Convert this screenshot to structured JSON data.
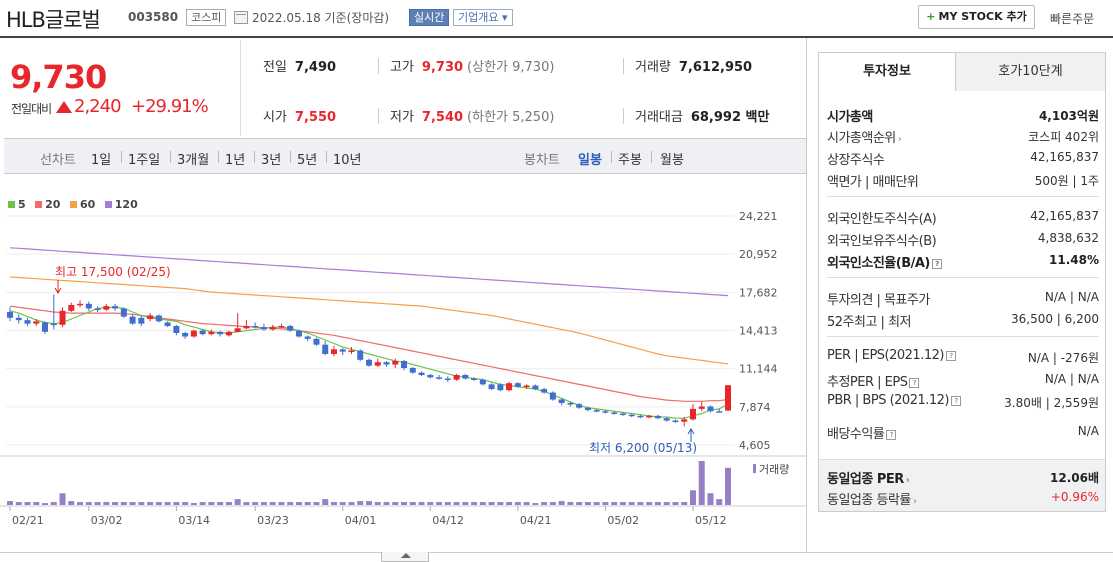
{
  "header": {
    "company_name": "HLB글로벌",
    "code": "003580",
    "market": "코스피",
    "date_text": "2022.05.18 기준(장마감)",
    "realtime": "실시간",
    "overview": "기업개요 ▾",
    "mystock_label": "MY STOCK 추가",
    "quick_order": "빠른주문"
  },
  "price": {
    "current": "9,730",
    "change_label": "전일대비",
    "change": "2,240",
    "change_pct": "+29.91%"
  },
  "stats": {
    "prev_close_label": "전일",
    "prev_close": "7,490",
    "open_label": "시가",
    "open": "7,550",
    "high_label": "고가",
    "high": "9,730",
    "upper_limit": "(상한가 9,730)",
    "low_label": "저가",
    "low": "7,540",
    "lower_limit": "(하한가 5,250)",
    "volume_label": "거래량",
    "volume": "7,612,950",
    "amount_label": "거래대금",
    "amount": "68,992 백만"
  },
  "period_bar": {
    "line_chart": "선차트",
    "periods": [
      "1일",
      "1주일",
      "3개월",
      "1년",
      "3년",
      "5년",
      "10년"
    ],
    "candle_chart": "봉차트",
    "candle_periods": [
      "일봉",
      "주봉",
      "월봉"
    ],
    "active_candle": "일봉"
  },
  "legend": [
    "5",
    "20",
    "60",
    "120"
  ],
  "colors": {
    "up": "#e8262b",
    "down": "#3f6fd1",
    "ma5": "#6cc24a",
    "ma20": "#f06b6b",
    "ma60": "#f5a04a",
    "ma120": "#a97bd8",
    "volume": "#9580c8"
  },
  "chart_data": {
    "type": "candlestick",
    "y_ticks": [
      "24,221",
      "20,952",
      "17,682",
      "14,413",
      "11,144",
      "7,874",
      "4,605"
    ],
    "ylim": [
      4605,
      24221
    ],
    "x_ticks": [
      "02/21",
      "03/02",
      "03/14",
      "03/23",
      "04/01",
      "04/12",
      "04/21",
      "05/02",
      "05/12"
    ],
    "annotation_high": "최고 17,500 (02/25)",
    "annotation_low": "최저 6,200 (05/13)",
    "volume_label": "거래량",
    "candles": [
      [
        16000,
        15500,
        16400,
        15200
      ],
      [
        15500,
        15300,
        15800,
        15000
      ],
      [
        15300,
        15000,
        15500,
        14800
      ],
      [
        15000,
        15200,
        15400,
        14800
      ],
      [
        15100,
        14300,
        15200,
        14100
      ],
      [
        15000,
        14900,
        17500,
        14500
      ],
      [
        14900,
        16100,
        16400,
        14700
      ],
      [
        16100,
        16600,
        16800,
        16000
      ],
      [
        16600,
        16700,
        17000,
        16400
      ],
      [
        16700,
        16300,
        16900,
        16100
      ],
      [
        16300,
        16200,
        16500,
        16000
      ],
      [
        16200,
        16500,
        16700,
        16100
      ],
      [
        16500,
        16300,
        16700,
        16100
      ],
      [
        16300,
        15600,
        16400,
        15500
      ],
      [
        15600,
        15000,
        15800,
        14900
      ],
      [
        15500,
        15000,
        15700,
        14800
      ],
      [
        15400,
        15700,
        15900,
        15200
      ],
      [
        15700,
        15200,
        15800,
        15100
      ],
      [
        15100,
        14800,
        15200,
        14700
      ],
      [
        14800,
        14200,
        14900,
        14000
      ],
      [
        14200,
        13900,
        14300,
        13700
      ],
      [
        13900,
        14400,
        14500,
        13800
      ],
      [
        14400,
        14100,
        14500,
        14000
      ],
      [
        14100,
        14300,
        14500,
        14000
      ],
      [
        14300,
        14100,
        14400,
        13900
      ],
      [
        14000,
        14300,
        14400,
        13900
      ],
      [
        14300,
        14600,
        15900,
        14300
      ],
      [
        14600,
        14800,
        15300,
        14500
      ],
      [
        14800,
        14700,
        15100,
        14600
      ],
      [
        14700,
        14500,
        15000,
        14400
      ],
      [
        14500,
        14700,
        14900,
        14400
      ],
      [
        14700,
        14800,
        15000,
        14600
      ],
      [
        14800,
        14400,
        14900,
        14300
      ],
      [
        14400,
        13900,
        14500,
        13800
      ],
      [
        13900,
        13700,
        14000,
        13500
      ],
      [
        13700,
        13200,
        13800,
        13100
      ],
      [
        13200,
        12400,
        13500,
        12300
      ],
      [
        12400,
        12800,
        13100,
        12200
      ],
      [
        12800,
        12600,
        12900,
        12300
      ],
      [
        12600,
        12700,
        13000,
        12400
      ],
      [
        12700,
        11900,
        12800,
        11800
      ],
      [
        11900,
        11400,
        12000,
        11300
      ],
      [
        11400,
        11700,
        12000,
        11300
      ],
      [
        11700,
        11500,
        11800,
        11300
      ],
      [
        11500,
        11800,
        12000,
        11200
      ],
      [
        11800,
        11200,
        11900,
        11000
      ],
      [
        11200,
        10800,
        11300,
        10700
      ],
      [
        10800,
        10600,
        10900,
        10500
      ],
      [
        10600,
        10400,
        10700,
        10300
      ],
      [
        10400,
        10300,
        10600,
        10200
      ],
      [
        10300,
        10200,
        10500,
        10000
      ],
      [
        10200,
        10600,
        10700,
        10100
      ],
      [
        10600,
        10300,
        10700,
        10200
      ],
      [
        10300,
        10200,
        10400,
        10100
      ],
      [
        10200,
        9800,
        10300,
        9700
      ],
      [
        9800,
        9400,
        9900,
        9300
      ],
      [
        9800,
        9300,
        9900,
        9200
      ],
      [
        9300,
        9900,
        10000,
        9200
      ],
      [
        9900,
        9600,
        10000,
        9500
      ],
      [
        9600,
        9700,
        9800,
        9400
      ],
      [
        9700,
        9400,
        9800,
        9300
      ],
      [
        9400,
        9100,
        9500,
        9000
      ],
      [
        9100,
        8500,
        9200,
        8400
      ],
      [
        8500,
        8200,
        8600,
        8000
      ],
      [
        8200,
        8100,
        8300,
        7900
      ],
      [
        8100,
        7800,
        8200,
        7700
      ],
      [
        7800,
        7600,
        7900,
        7500
      ],
      [
        7600,
        7500,
        7700,
        7400
      ],
      [
        7500,
        7400,
        7600,
        7300
      ],
      [
        7400,
        7300,
        7500,
        7200
      ],
      [
        7300,
        7200,
        7400,
        7100
      ],
      [
        7200,
        7100,
        7300,
        7000
      ],
      [
        7100,
        7000,
        7200,
        6900
      ],
      [
        7000,
        7100,
        7200,
        6900
      ],
      [
        7100,
        6900,
        7200,
        6800
      ],
      [
        6900,
        6700,
        7000,
        6600
      ],
      [
        6700,
        6600,
        6800,
        6500
      ],
      [
        6600,
        6800,
        7000,
        6200
      ],
      [
        6800,
        7700,
        8100,
        6700
      ],
      [
        7700,
        7900,
        8300,
        7500
      ],
      [
        7900,
        7500,
        8000,
        7400
      ],
      [
        7500,
        7490,
        7700,
        7400
      ],
      [
        7550,
        9730,
        9730,
        7540
      ]
    ],
    "volumes": [
      4,
      3,
      3,
      3,
      2,
      3,
      12,
      4,
      3,
      3,
      3,
      3,
      3,
      3,
      3,
      3,
      3,
      3,
      3,
      3,
      3,
      2,
      3,
      3,
      3,
      3,
      6,
      3,
      3,
      3,
      3,
      3,
      3,
      3,
      3,
      3,
      6,
      3,
      3,
      3,
      4,
      4,
      3,
      3,
      3,
      3,
      3,
      3,
      3,
      3,
      3,
      3,
      3,
      3,
      3,
      3,
      3,
      3,
      3,
      3,
      2,
      3,
      3,
      4,
      3,
      3,
      3,
      3,
      3,
      3,
      3,
      3,
      3,
      3,
      3,
      3,
      3,
      3,
      15,
      45,
      12,
      6,
      38
    ],
    "ma5": [
      16100,
      15900,
      15600,
      15300,
      15100,
      15000,
      15100,
      15400,
      15700,
      16000,
      16300,
      16400,
      16400,
      16300,
      16000,
      15700,
      15500,
      15400,
      15300,
      15200,
      14900,
      14700,
      14500,
      14300,
      14200,
      14200,
      14300,
      14400,
      14500,
      14600,
      14700,
      14700,
      14600,
      14400,
      14200,
      13900,
      13600,
      13300,
      13000,
      12800,
      12600,
      12400,
      12200,
      12000,
      11800,
      11700,
      11500,
      11300,
      11100,
      10900,
      10700,
      10500,
      10400,
      10300,
      10200,
      10000,
      9800,
      9700,
      9600,
      9500,
      9400,
      9200,
      8900,
      8600,
      8300,
      8000,
      7800,
      7700,
      7600,
      7500,
      7400,
      7300,
      7200,
      7100,
      7000,
      7000,
      6900,
      6900,
      7100,
      7300,
      7600,
      7700,
      8100
    ],
    "ma20": [
      16500,
      16400,
      16300,
      16200,
      16100,
      16000,
      15950,
      15900,
      15900,
      15900,
      15900,
      15900,
      15900,
      15850,
      15800,
      15700,
      15600,
      15500,
      15400,
      15300,
      15200,
      15100,
      15000,
      14950,
      14900,
      14850,
      14800,
      14750,
      14700,
      14650,
      14600,
      14550,
      14500,
      14400,
      14300,
      14200,
      14100,
      14000,
      13850,
      13700,
      13550,
      13400,
      13250,
      13100,
      12950,
      12800,
      12650,
      12500,
      12350,
      12200,
      12050,
      11900,
      11750,
      11600,
      11450,
      11300,
      11150,
      11000,
      10850,
      10700,
      10550,
      10400,
      10250,
      10100,
      9950,
      9800,
      9650,
      9500,
      9350,
      9200,
      9050,
      8900,
      8750,
      8650,
      8550,
      8450,
      8400,
      8350,
      8350,
      8350,
      8400,
      8400,
      8500
    ],
    "ma60": [
      19000,
      18950,
      18900,
      18850,
      18800,
      18750,
      18700,
      18650,
      18600,
      18550,
      18500,
      18450,
      18400,
      18350,
      18300,
      18250,
      18200,
      18150,
      18100,
      18050,
      18000,
      17900,
      17800,
      17700,
      17650,
      17600,
      17550,
      17500,
      17450,
      17400,
      17350,
      17300,
      17250,
      17200,
      17150,
      17100,
      17050,
      17000,
      16950,
      16900,
      16850,
      16800,
      16750,
      16700,
      16650,
      16600,
      16550,
      16500,
      16400,
      16300,
      16200,
      16100,
      16000,
      15900,
      15800,
      15700,
      15550,
      15400,
      15250,
      15100,
      14950,
      14800,
      14650,
      14500,
      14350,
      14200,
      14000,
      13800,
      13600,
      13400,
      13200,
      13000,
      12800,
      12600,
      12400,
      12250,
      12150,
      12050,
      11950,
      11850,
      11750,
      11650,
      11550
    ],
    "ma120": [
      21500,
      21450,
      21400,
      21350,
      21300,
      21250,
      21200,
      21150,
      21100,
      21050,
      21000,
      20950,
      20900,
      20850,
      20800,
      20750,
      20700,
      20650,
      20600,
      20550,
      20500,
      20450,
      20400,
      20350,
      20300,
      20250,
      20200,
      20150,
      20100,
      20050,
      20000,
      19950,
      19900,
      19850,
      19800,
      19750,
      19700,
      19650,
      19600,
      19550,
      19500,
      19450,
      19400,
      19350,
      19300,
      19250,
      19200,
      19150,
      19100,
      19050,
      19000,
      18950,
      18900,
      18850,
      18800,
      18750,
      18700,
      18650,
      18600,
      18550,
      18500,
      18450,
      18400,
      18350,
      18300,
      18250,
      18200,
      18150,
      18100,
      18050,
      18000,
      17950,
      17900,
      17850,
      17800,
      17750,
      17700,
      17650,
      17600,
      17550,
      17500,
      17450,
      17400
    ]
  },
  "side_panel": {
    "tab_invest": "투자정보",
    "tab_orderbook": "호가10단계",
    "rows": [
      {
        "k": "시가총액",
        "v": "4,103억원"
      },
      {
        "k": "시가총액순위",
        "v": "코스피 402위"
      },
      {
        "k": "상장주식수",
        "v": "42,165,837"
      },
      {
        "k": "액면가 | 매매단위",
        "v": "500원 | 1주"
      },
      {
        "k": "외국인한도주식수(A)",
        "v": "42,165,837"
      },
      {
        "k": "외국인보유주식수(B)",
        "v": "4,838,632"
      },
      {
        "k": "외국인소진율(B/A)",
        "v": "11.48%"
      },
      {
        "k": "투자의견 | 목표주가",
        "v": "N/A | N/A"
      },
      {
        "k": "52주최고 | 최저",
        "v": "36,500 | 6,200"
      },
      {
        "k": "PER | EPS(2021.12)",
        "v": "N/A | -276원"
      },
      {
        "k": "추정PER | EPS",
        "v": "N/A | N/A"
      },
      {
        "k": "PBR | BPS (2021.12)",
        "v": "3.80배 | 2,559원"
      },
      {
        "k": "배당수익률",
        "v": "N/A"
      },
      {
        "k": "동일업종 PER",
        "v": "12.06배"
      },
      {
        "k": "동일업종 등락률",
        "v": "+0.96%"
      }
    ]
  }
}
